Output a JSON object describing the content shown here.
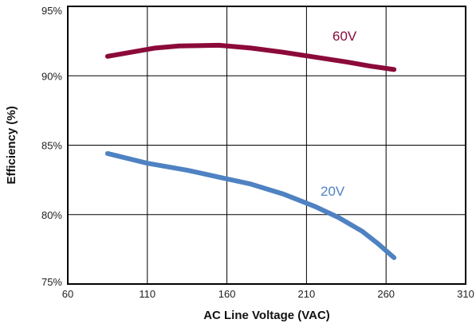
{
  "chart_data": {
    "type": "line",
    "xlabel": "AC Line Voltage (VAC)",
    "ylabel": "Efficiency (%)",
    "xlim": [
      60,
      310
    ],
    "ylim": [
      75,
      95
    ],
    "x_ticks": [
      60,
      110,
      160,
      210,
      260,
      310
    ],
    "y_ticks": [
      75,
      80,
      85,
      90,
      95
    ],
    "y_tick_labels": [
      "75%",
      "80%",
      "85%",
      "90%",
      "95%"
    ],
    "grid": true,
    "series": [
      {
        "name": "60V",
        "color": "#8b0a3a",
        "x": [
          85,
          100,
          115,
          130,
          155,
          175,
          195,
          215,
          235,
          250,
          265
        ],
        "y": [
          91.4,
          91.7,
          92.0,
          92.15,
          92.2,
          92.0,
          91.7,
          91.35,
          91.0,
          90.7,
          90.45
        ]
      },
      {
        "name": "20V",
        "color": "#4f82c2",
        "x": [
          85,
          110,
          135,
          155,
          175,
          195,
          215,
          230,
          245,
          255,
          265
        ],
        "y": [
          84.4,
          83.7,
          83.2,
          82.7,
          82.2,
          81.5,
          80.6,
          79.8,
          78.8,
          77.9,
          76.9
        ]
      }
    ]
  }
}
